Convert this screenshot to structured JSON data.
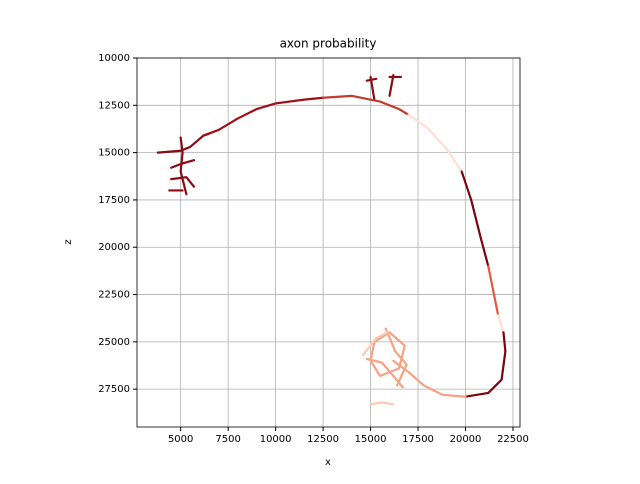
{
  "chart_data": {
    "type": "line",
    "title": "axon probability",
    "x_label": "x",
    "y_label": "z",
    "xlim": [
      2700,
      22870
    ],
    "ylim": [
      29500,
      10000
    ],
    "xticks": [
      5000,
      7500,
      10000,
      12500,
      15000,
      17500,
      20000,
      22500
    ],
    "yticks": [
      10000,
      12500,
      15000,
      17500,
      20000,
      22500,
      25000,
      27500
    ],
    "grid": true,
    "series": [
      {
        "color": "#8b0a14",
        "x": [
          3800,
          5000,
          5500,
          6200,
          6500,
          null,
          5000,
          5100,
          5000,
          5200,
          5300,
          null,
          4500,
          5000,
          5700,
          null,
          4500,
          5300,
          5700,
          null,
          4400,
          5100,
          null,
          15000,
          15200,
          null,
          14800,
          15300,
          null,
          16200,
          16000,
          null,
          16000,
          16600
        ],
        "values": [
          15000,
          14900,
          14700,
          14100,
          14000,
          null,
          14200,
          15000,
          16000,
          16800,
          17200,
          null,
          15800,
          15600,
          15400,
          null,
          16400,
          16300,
          16800,
          null,
          17000,
          17000,
          null,
          11000,
          12200,
          null,
          11200,
          11100,
          null,
          10900,
          12000,
          null,
          11000,
          11000
        ]
      },
      {
        "color": "#9e1019",
        "x": [
          6200,
          7000,
          8000,
          9000,
          10000,
          11500,
          12500
        ],
        "values": [
          14100,
          13800,
          13200,
          12700,
          12400,
          12200,
          12100
        ]
      },
      {
        "color": "#c43a2f",
        "x": [
          12500,
          14000,
          15500,
          16500,
          17000
        ],
        "values": [
          12100,
          12000,
          12300,
          12700,
          13000
        ]
      },
      {
        "color": "#fde0d2",
        "x": [
          17000,
          18000,
          19000,
          19800,
          null,
          21700,
          22000
        ],
        "values": [
          13000,
          13700,
          14800,
          16000,
          null,
          23500,
          24500
        ]
      },
      {
        "color": "#7a0510",
        "x": [
          19800,
          20300,
          20800,
          21200,
          null,
          22000,
          22100,
          21900,
          21200,
          20000
        ],
        "values": [
          16000,
          17500,
          19500,
          21000,
          null,
          24500,
          25500,
          27000,
          27700,
          27900
        ]
      },
      {
        "color": "#e3593f",
        "x": [
          21200,
          21500,
          21700
        ],
        "values": [
          21000,
          22500,
          23500
        ]
      },
      {
        "color": "#f6a283",
        "x": [
          20000,
          18800,
          17800,
          17000,
          16200,
          null,
          15200,
          16000,
          16800,
          16500,
          15500,
          15000,
          15200,
          null,
          15800,
          16300,
          16900,
          16400,
          null,
          14800,
          15600,
          16200,
          16700
        ],
        "values": [
          27900,
          27800,
          27300,
          26600,
          26000,
          null,
          25000,
          24500,
          25200,
          26400,
          26800,
          26000,
          25000,
          null,
          24300,
          25500,
          26200,
          27300,
          null,
          25900,
          26100,
          26800,
          27400
        ]
      },
      {
        "color": "#fcc9b4",
        "x": [
          15000,
          15600,
          16200,
          null,
          14600,
          15300,
          15900
        ],
        "values": [
          28300,
          28200,
          28300,
          null,
          25700,
          24800,
          24500
        ]
      }
    ]
  }
}
